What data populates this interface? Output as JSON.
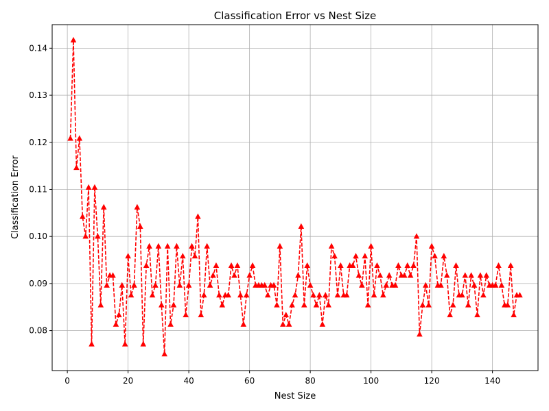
{
  "chart_data": {
    "type": "line",
    "title": "Classification Error vs Nest Size",
    "xlabel": "Nest Size",
    "ylabel": "Classification Error",
    "xlim": [
      -5,
      155
    ],
    "ylim": [
      0.0715,
      0.145
    ],
    "grid": true,
    "xticks": [
      0,
      20,
      40,
      60,
      80,
      100,
      120,
      140
    ],
    "xtick_labels": [
      "0",
      "20",
      "40",
      "60",
      "80",
      "100",
      "120",
      "140"
    ],
    "yticks": [
      0.08,
      0.09,
      0.1,
      0.11,
      0.12,
      0.13,
      0.14
    ],
    "ytick_labels": [
      "0.08",
      "0.09",
      "0.10",
      "0.11",
      "0.12",
      "0.13",
      "0.14"
    ],
    "series": [
      {
        "line_color": "#ff0000",
        "line_style": "dashed",
        "marker": "triangle-up",
        "x": [
          1,
          2,
          3,
          4,
          5,
          6,
          7,
          8,
          9,
          10,
          11,
          12,
          13,
          14,
          15,
          16,
          17,
          18,
          19,
          20,
          21,
          22,
          23,
          24,
          25,
          26,
          27,
          28,
          29,
          30,
          31,
          32,
          33,
          34,
          35,
          36,
          37,
          38,
          39,
          40,
          41,
          42,
          43,
          44,
          45,
          46,
          47,
          48,
          49,
          50,
          51,
          52,
          53,
          54,
          55,
          56,
          57,
          58,
          59,
          60,
          61,
          62,
          63,
          64,
          65,
          66,
          67,
          68,
          69,
          70,
          71,
          72,
          73,
          74,
          75,
          76,
          77,
          78,
          79,
          80,
          81,
          82,
          83,
          84,
          85,
          86,
          87,
          88,
          89,
          90,
          91,
          92,
          93,
          94,
          95,
          96,
          97,
          98,
          99,
          100,
          101,
          102,
          103,
          104,
          105,
          106,
          107,
          108,
          109,
          110,
          111,
          112,
          113,
          114,
          115,
          116,
          117,
          118,
          119,
          120,
          121,
          122,
          123,
          124,
          125,
          126,
          127,
          128,
          129,
          130,
          131,
          132,
          133,
          134,
          135,
          136,
          137,
          138,
          139,
          140,
          141,
          142,
          143,
          144,
          145,
          146,
          147,
          148,
          149
        ],
        "y": [
          0.1208,
          0.1417,
          0.1146,
          0.1208,
          0.1042,
          0.1,
          0.1104,
          0.0771,
          0.1104,
          0.1,
          0.0854,
          0.1062,
          0.0896,
          0.0917,
          0.0917,
          0.0813,
          0.0833,
          0.0896,
          0.0771,
          0.0958,
          0.0875,
          0.0896,
          0.1062,
          0.1021,
          0.0771,
          0.0938,
          0.0979,
          0.0875,
          0.0896,
          0.0979,
          0.0854,
          0.075,
          0.0979,
          0.0813,
          0.0854,
          0.0979,
          0.0896,
          0.0958,
          0.0833,
          0.0896,
          0.0979,
          0.0958,
          0.1042,
          0.0833,
          0.0875,
          0.0979,
          0.0896,
          0.0917,
          0.0938,
          0.0875,
          0.0854,
          0.0875,
          0.0875,
          0.0938,
          0.0917,
          0.0938,
          0.0875,
          0.0813,
          0.0875,
          0.0917,
          0.0938,
          0.0896,
          0.0896,
          0.0896,
          0.0896,
          0.0875,
          0.0896,
          0.0896,
          0.0854,
          0.0979,
          0.0813,
          0.0833,
          0.0813,
          0.0854,
          0.0875,
          0.0917,
          0.1021,
          0.0854,
          0.0938,
          0.0896,
          0.0875,
          0.0854,
          0.0875,
          0.0813,
          0.0875,
          0.0854,
          0.0979,
          0.0958,
          0.0875,
          0.0938,
          0.0875,
          0.0875,
          0.0938,
          0.0938,
          0.0958,
          0.0917,
          0.0896,
          0.0958,
          0.0854,
          0.0979,
          0.0875,
          0.0938,
          0.0917,
          0.0875,
          0.0896,
          0.0917,
          0.0896,
          0.0896,
          0.0938,
          0.0917,
          0.0917,
          0.0938,
          0.0917,
          0.0938,
          0.1,
          0.0792,
          0.0854,
          0.0896,
          0.0854,
          0.0979,
          0.0958,
          0.0896,
          0.0896,
          0.0958,
          0.0917,
          0.0833,
          0.0854,
          0.0938,
          0.0875,
          0.0875,
          0.0917,
          0.0854,
          0.0917,
          0.0896,
          0.0833,
          0.0917,
          0.0875,
          0.0917,
          0.0896,
          0.0896,
          0.0896,
          0.0938,
          0.0896,
          0.0854,
          0.0854,
          0.0938,
          0.0833,
          0.0875,
          0.0875
        ]
      }
    ]
  }
}
